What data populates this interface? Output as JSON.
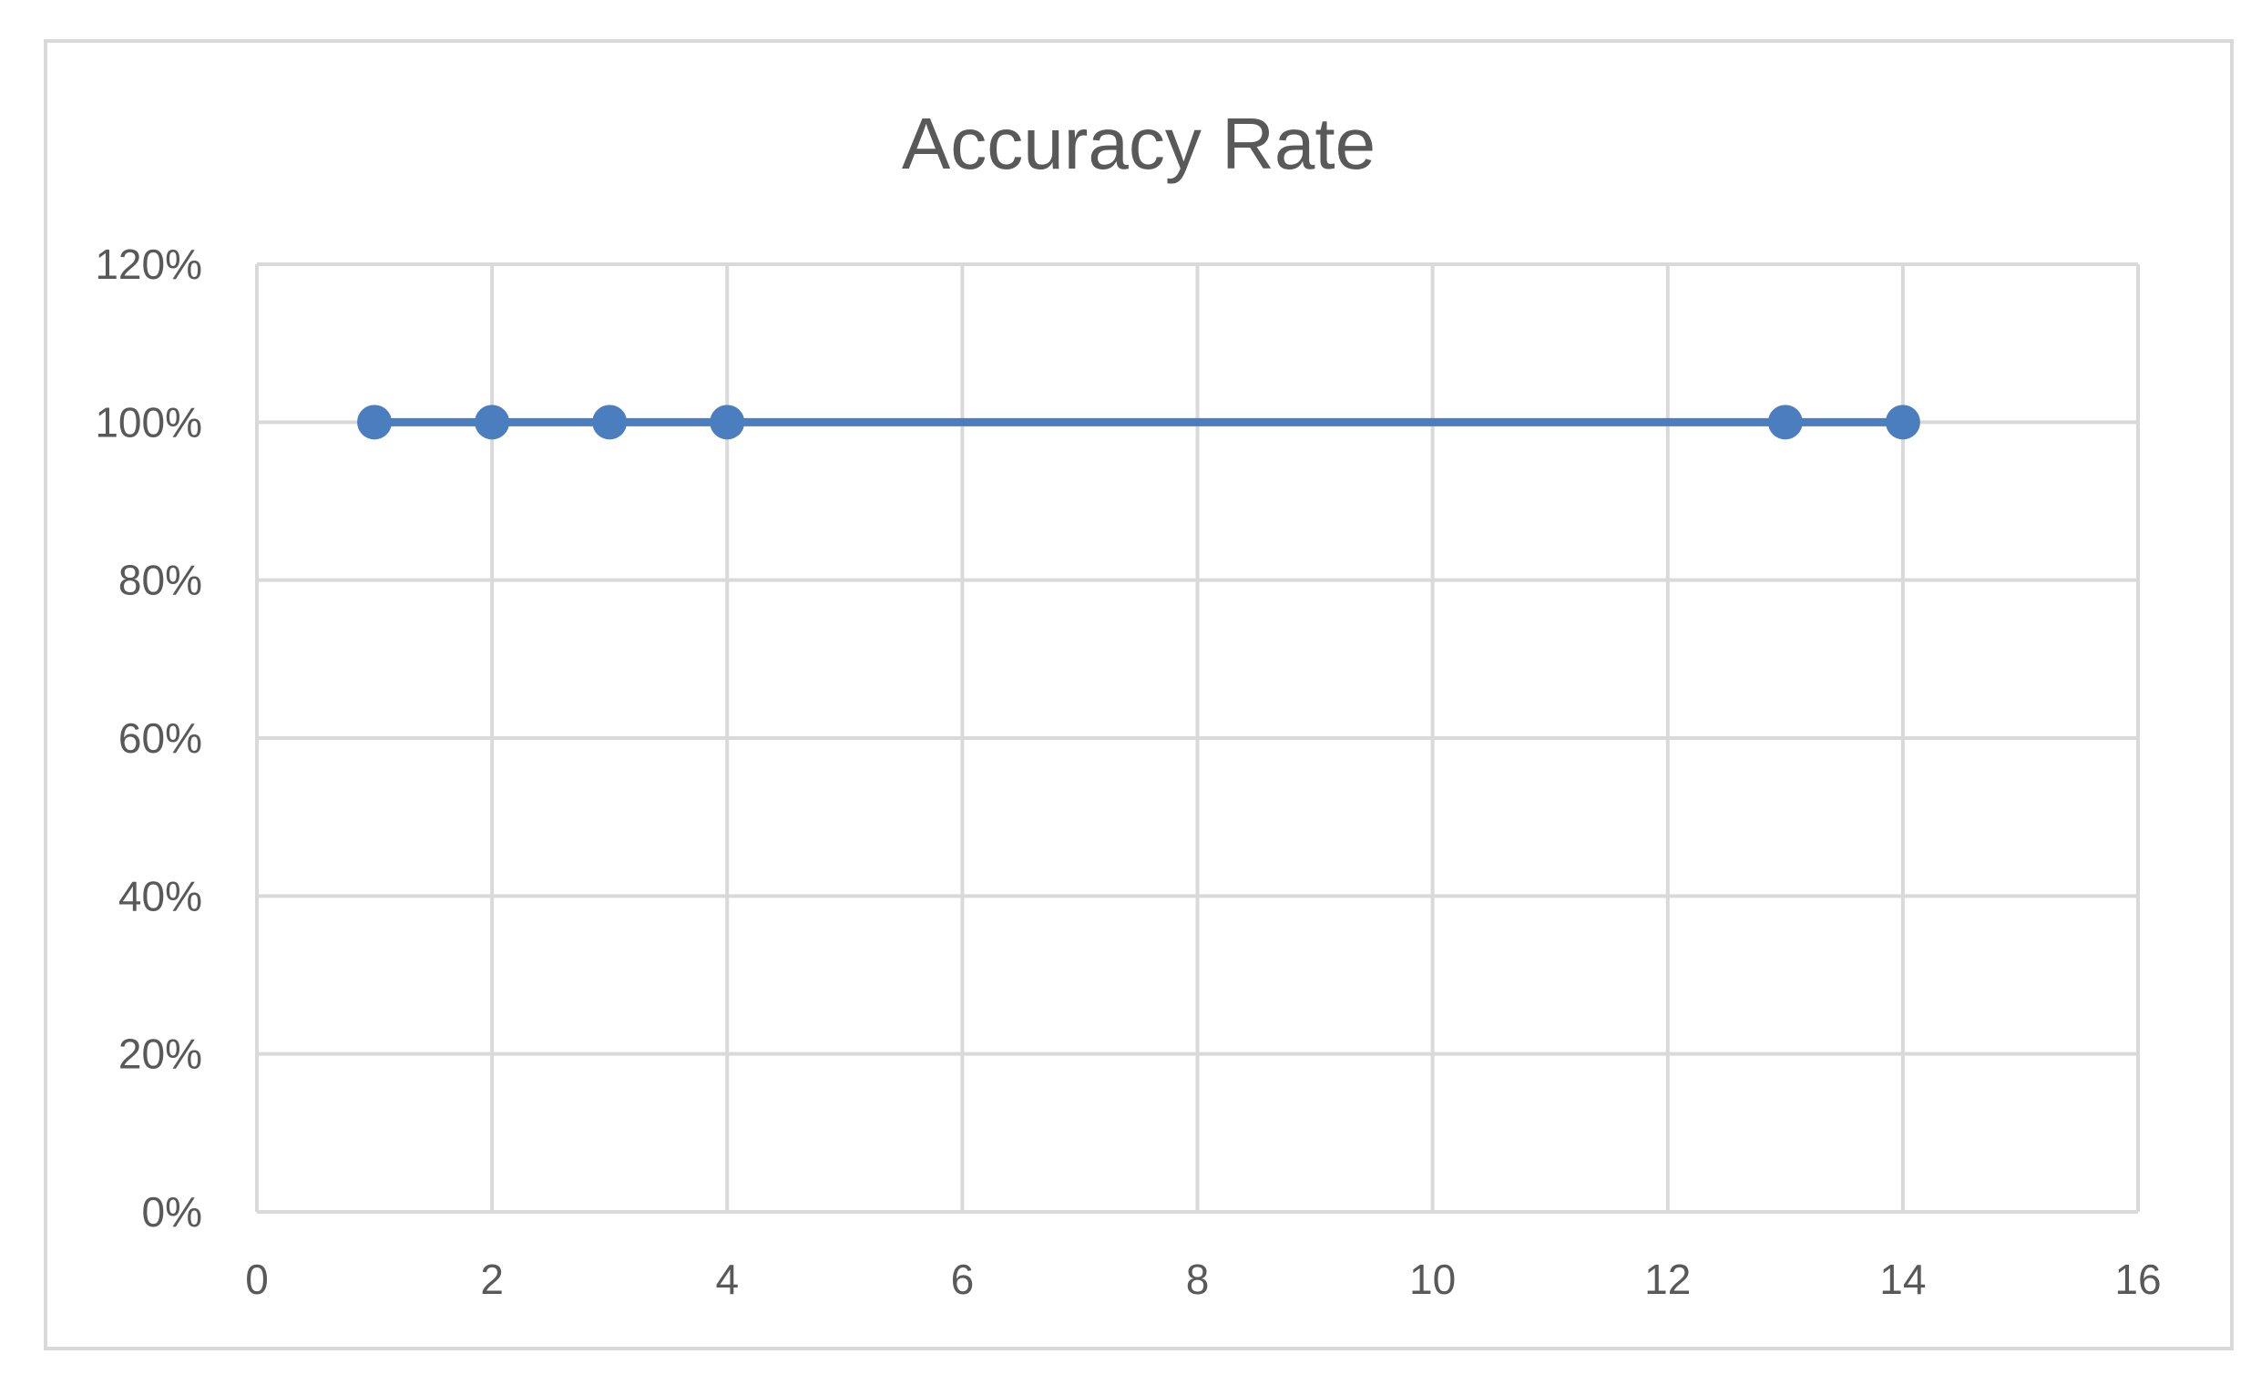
{
  "chart_data": {
    "type": "scatter",
    "title": "Accuracy Rate",
    "xlabel": "",
    "ylabel": "",
    "xlim": [
      0,
      16
    ],
    "ylim": [
      0,
      1.2
    ],
    "x_ticks": [
      0,
      2,
      4,
      6,
      8,
      10,
      12,
      14,
      16
    ],
    "x_tick_labels": [
      "0",
      "2",
      "4",
      "6",
      "8",
      "10",
      "12",
      "14",
      "16"
    ],
    "y_ticks": [
      0,
      0.2,
      0.4,
      0.6,
      0.8,
      1.0,
      1.2
    ],
    "y_tick_labels": [
      "0%",
      "20%",
      "40%",
      "60%",
      "80%",
      "100%",
      "120%"
    ],
    "grid": true,
    "legend": "none",
    "series": [
      {
        "color": "#4a7ebf",
        "style": "scatter with straight lines and markers",
        "points": [
          {
            "x": 1,
            "y": 1.0
          },
          {
            "x": 2,
            "y": 1.0
          },
          {
            "x": 3,
            "y": 1.0
          },
          {
            "x": 4,
            "y": 1.0
          },
          {
            "x": 13,
            "y": 1.0
          },
          {
            "x": 14,
            "y": 1.0
          }
        ]
      }
    ]
  },
  "colors": {
    "series": "#4a7ebf",
    "gridline": "#d9d9d9",
    "text": "#595959",
    "frame": "#d9d9d9"
  }
}
